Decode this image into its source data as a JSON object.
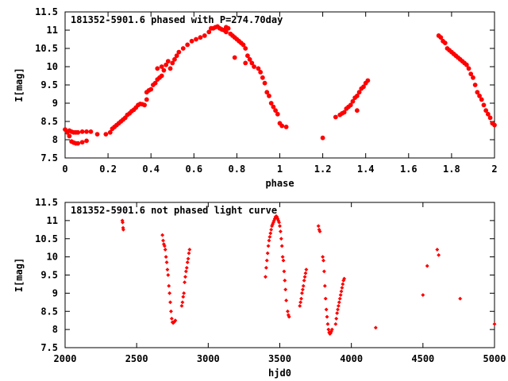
{
  "colors": {
    "points": "#ff0000",
    "axes": "#000000",
    "background": "#ffffff"
  },
  "chart_data": [
    {
      "type": "scatter",
      "title": "181352-5901.6 phased with P=274.70day",
      "xlabel": "phase",
      "ylabel": "I[mag]",
      "xlim": [
        0,
        2
      ],
      "ylim": [
        11.5,
        7.5
      ],
      "y_inverted": true,
      "grid": false,
      "xticks": [
        "0",
        "0.2",
        "0.4",
        "0.6",
        "0.8",
        "1",
        "1.2",
        "1.4",
        "1.6",
        "1.8",
        "2"
      ],
      "yticks": [
        "7.5",
        "8",
        "8.5",
        "9",
        "9.5",
        "10",
        "10.5",
        "11",
        "11.5"
      ],
      "series": [
        {
          "marker": "star",
          "points": [
            [
              0.0,
              8.28
            ],
            [
              0.01,
              8.2
            ],
            [
              0.02,
              8.1
            ],
            [
              0.03,
              7.95
            ],
            [
              0.04,
              7.92
            ],
            [
              0.05,
              7.9
            ],
            [
              0.06,
              7.9
            ],
            [
              0.08,
              7.93
            ],
            [
              0.1,
              7.97
            ],
            [
              0.02,
              8.25
            ],
            [
              0.03,
              8.22
            ],
            [
              0.04,
              8.2
            ],
            [
              0.05,
              8.2
            ],
            [
              0.06,
              8.2
            ],
            [
              0.08,
              8.22
            ],
            [
              0.1,
              8.22
            ],
            [
              0.12,
              8.22
            ],
            [
              0.15,
              8.15
            ],
            [
              0.19,
              8.15
            ],
            [
              0.21,
              8.2
            ],
            [
              0.22,
              8.3
            ],
            [
              0.23,
              8.35
            ],
            [
              0.24,
              8.4
            ],
            [
              0.25,
              8.45
            ],
            [
              0.26,
              8.5
            ],
            [
              0.27,
              8.55
            ],
            [
              0.28,
              8.6
            ],
            [
              0.29,
              8.68
            ],
            [
              0.3,
              8.72
            ],
            [
              0.31,
              8.78
            ],
            [
              0.32,
              8.82
            ],
            [
              0.33,
              8.88
            ],
            [
              0.34,
              8.95
            ],
            [
              0.35,
              8.98
            ],
            [
              0.36,
              8.97
            ],
            [
              0.37,
              8.95
            ],
            [
              0.38,
              9.1
            ],
            [
              0.38,
              9.3
            ],
            [
              0.39,
              9.35
            ],
            [
              0.4,
              9.38
            ],
            [
              0.41,
              9.5
            ],
            [
              0.42,
              9.55
            ],
            [
              0.43,
              9.65
            ],
            [
              0.43,
              9.95
            ],
            [
              0.44,
              9.7
            ],
            [
              0.45,
              9.75
            ],
            [
              0.45,
              10.0
            ],
            [
              0.46,
              9.9
            ],
            [
              0.47,
              10.05
            ],
            [
              0.48,
              10.15
            ],
            [
              0.49,
              9.95
            ],
            [
              0.5,
              10.1
            ],
            [
              0.51,
              10.2
            ],
            [
              0.52,
              10.3
            ],
            [
              0.53,
              10.4
            ],
            [
              0.55,
              10.5
            ],
            [
              0.57,
              10.6
            ],
            [
              0.59,
              10.7
            ],
            [
              0.61,
              10.75
            ],
            [
              0.63,
              10.8
            ],
            [
              0.65,
              10.85
            ],
            [
              0.67,
              10.95
            ],
            [
              0.68,
              11.05
            ],
            [
              0.69,
              11.05
            ],
            [
              0.7,
              11.08
            ],
            [
              0.71,
              11.1
            ],
            [
              0.72,
              11.05
            ],
            [
              0.73,
              11.02
            ],
            [
              0.74,
              11.0
            ],
            [
              0.75,
              10.95
            ],
            [
              0.75,
              11.08
            ],
            [
              0.76,
              11.05
            ],
            [
              0.77,
              10.9
            ],
            [
              0.78,
              10.85
            ],
            [
              0.79,
              10.8
            ],
            [
              0.8,
              10.75
            ],
            [
              0.81,
              10.7
            ],
            [
              0.82,
              10.65
            ],
            [
              0.83,
              10.6
            ],
            [
              0.84,
              10.5
            ],
            [
              0.85,
              10.3
            ],
            [
              0.86,
              10.2
            ],
            [
              0.87,
              10.1
            ],
            [
              0.88,
              10.0
            ],
            [
              0.9,
              9.95
            ],
            [
              0.91,
              9.85
            ],
            [
              0.92,
              9.7
            ],
            [
              0.93,
              9.55
            ],
            [
              0.94,
              9.3
            ],
            [
              0.95,
              9.2
            ],
            [
              0.96,
              9.0
            ],
            [
              0.97,
              8.9
            ],
            [
              0.98,
              8.8
            ],
            [
              0.99,
              8.7
            ],
            [
              1.0,
              8.45
            ],
            [
              1.01,
              8.38
            ],
            [
              1.03,
              8.35
            ],
            [
              0.79,
              10.25
            ],
            [
              0.84,
              10.1
            ],
            [
              1.2,
              8.05
            ],
            [
              1.26,
              8.62
            ],
            [
              1.28,
              8.68
            ],
            [
              1.29,
              8.72
            ],
            [
              1.3,
              8.75
            ],
            [
              1.31,
              8.85
            ],
            [
              1.32,
              8.9
            ],
            [
              1.33,
              8.95
            ],
            [
              1.34,
              9.05
            ],
            [
              1.35,
              9.15
            ],
            [
              1.36,
              9.2
            ],
            [
              1.37,
              9.3
            ],
            [
              1.38,
              9.4
            ],
            [
              1.39,
              9.45
            ],
            [
              1.4,
              9.55
            ],
            [
              1.41,
              9.62
            ],
            [
              1.36,
              8.8
            ],
            [
              1.74,
              10.85
            ],
            [
              1.75,
              10.8
            ],
            [
              1.76,
              10.7
            ],
            [
              1.77,
              10.65
            ],
            [
              1.78,
              10.5
            ],
            [
              1.79,
              10.45
            ],
            [
              1.8,
              10.4
            ],
            [
              1.81,
              10.35
            ],
            [
              1.82,
              10.3
            ],
            [
              1.83,
              10.25
            ],
            [
              1.84,
              10.2
            ],
            [
              1.85,
              10.15
            ],
            [
              1.86,
              10.1
            ],
            [
              1.87,
              10.05
            ],
            [
              1.88,
              9.95
            ],
            [
              1.89,
              9.8
            ],
            [
              1.9,
              9.7
            ],
            [
              1.91,
              9.5
            ],
            [
              1.92,
              9.3
            ],
            [
              1.93,
              9.2
            ],
            [
              1.94,
              9.1
            ],
            [
              1.95,
              8.95
            ],
            [
              1.96,
              8.8
            ],
            [
              1.97,
              8.7
            ],
            [
              1.98,
              8.6
            ],
            [
              1.99,
              8.45
            ],
            [
              2.0,
              8.4
            ]
          ]
        }
      ]
    },
    {
      "type": "scatter",
      "title": "181352-5901.6 not phased light curve",
      "xlabel": "hjd0",
      "ylabel": "I[mag]",
      "xlim": [
        2000,
        5000
      ],
      "ylim": [
        11.5,
        7.5
      ],
      "y_inverted": true,
      "grid": false,
      "xticks": [
        "2000",
        "2500",
        "3000",
        "3500",
        "4000",
        "4500",
        "5000"
      ],
      "yticks": [
        "7.5",
        "8",
        "8.5",
        "9",
        "9.5",
        "10",
        "10.5",
        "11",
        "11.5"
      ],
      "series": [
        {
          "marker": "diamond",
          "points": [
            [
              2400,
              11.0
            ],
            [
              2402,
              10.95
            ],
            [
              2405,
              10.8
            ],
            [
              2407,
              10.75
            ],
            [
              2680,
              10.6
            ],
            [
              2685,
              10.45
            ],
            [
              2690,
              10.35
            ],
            [
              2695,
              10.3
            ],
            [
              2700,
              10.2
            ],
            [
              2705,
              10.0
            ],
            [
              2710,
              9.85
            ],
            [
              2715,
              9.65
            ],
            [
              2720,
              9.5
            ],
            [
              2725,
              9.2
            ],
            [
              2730,
              9.0
            ],
            [
              2735,
              8.75
            ],
            [
              2740,
              8.5
            ],
            [
              2745,
              8.3
            ],
            [
              2750,
              8.2
            ],
            [
              2755,
              8.18
            ],
            [
              2760,
              8.2
            ],
            [
              2765,
              8.22
            ],
            [
              2770,
              8.25
            ],
            [
              2815,
              8.65
            ],
            [
              2820,
              8.75
            ],
            [
              2825,
              8.9
            ],
            [
              2830,
              9.0
            ],
            [
              2835,
              9.3
            ],
            [
              2840,
              9.45
            ],
            [
              2845,
              9.6
            ],
            [
              2850,
              9.7
            ],
            [
              2855,
              9.85
            ],
            [
              2860,
              9.95
            ],
            [
              2865,
              10.1
            ],
            [
              2870,
              10.2
            ],
            [
              3400,
              9.45
            ],
            [
              3405,
              9.7
            ],
            [
              3410,
              9.9
            ],
            [
              3415,
              10.1
            ],
            [
              3420,
              10.3
            ],
            [
              3425,
              10.45
            ],
            [
              3430,
              10.55
            ],
            [
              3435,
              10.65
            ],
            [
              3440,
              10.75
            ],
            [
              3445,
              10.85
            ],
            [
              3450,
              10.9
            ],
            [
              3455,
              10.95
            ],
            [
              3460,
              11.0
            ],
            [
              3465,
              11.05
            ],
            [
              3470,
              11.1
            ],
            [
              3475,
              11.12
            ],
            [
              3480,
              11.1
            ],
            [
              3485,
              11.05
            ],
            [
              3490,
              11.0
            ],
            [
              3495,
              10.95
            ],
            [
              3500,
              10.85
            ],
            [
              3505,
              10.7
            ],
            [
              3510,
              10.5
            ],
            [
              3515,
              10.3
            ],
            [
              3520,
              10.0
            ],
            [
              3525,
              9.9
            ],
            [
              3530,
              9.6
            ],
            [
              3535,
              9.35
            ],
            [
              3540,
              9.1
            ],
            [
              3545,
              8.8
            ],
            [
              3555,
              8.5
            ],
            [
              3560,
              8.4
            ],
            [
              3565,
              8.35
            ],
            [
              3640,
              8.65
            ],
            [
              3645,
              8.75
            ],
            [
              3650,
              8.85
            ],
            [
              3655,
              9.0
            ],
            [
              3660,
              9.1
            ],
            [
              3665,
              9.2
            ],
            [
              3670,
              9.35
            ],
            [
              3675,
              9.45
            ],
            [
              3680,
              9.55
            ],
            [
              3685,
              9.65
            ],
            [
              3770,
              10.85
            ],
            [
              3775,
              10.75
            ],
            [
              3780,
              10.7
            ],
            [
              3800,
              10.0
            ],
            [
              3805,
              9.9
            ],
            [
              3810,
              9.6
            ],
            [
              3815,
              9.2
            ],
            [
              3820,
              8.85
            ],
            [
              3825,
              8.55
            ],
            [
              3830,
              8.35
            ],
            [
              3835,
              8.15
            ],
            [
              3840,
              8.0
            ],
            [
              3845,
              7.92
            ],
            [
              3850,
              7.88
            ],
            [
              3855,
              7.9
            ],
            [
              3860,
              7.95
            ],
            [
              3865,
              8.0
            ],
            [
              3890,
              8.15
            ],
            [
              3895,
              8.3
            ],
            [
              3900,
              8.45
            ],
            [
              3905,
              8.55
            ],
            [
              3910,
              8.65
            ],
            [
              3915,
              8.75
            ],
            [
              3920,
              8.85
            ],
            [
              3925,
              8.95
            ],
            [
              3930,
              9.05
            ],
            [
              3935,
              9.15
            ],
            [
              3940,
              9.25
            ],
            [
              3945,
              9.35
            ],
            [
              3950,
              9.4
            ],
            [
              4170,
              8.05
            ],
            [
              4500,
              8.95
            ],
            [
              4530,
              9.75
            ],
            [
              4600,
              10.2
            ],
            [
              4610,
              10.05
            ],
            [
              4760,
              8.85
            ],
            [
              5000,
              8.15
            ]
          ]
        }
      ]
    }
  ]
}
